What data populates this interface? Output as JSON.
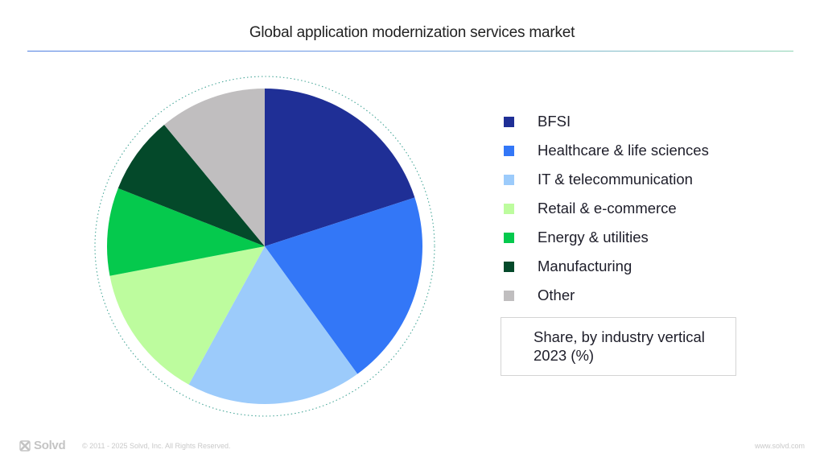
{
  "header": {
    "title": "Global application modernization services market"
  },
  "chart_data": {
    "type": "pie",
    "title": "Global application modernization services market",
    "subtitle": [
      "Share, by industry vertical",
      "2023 (%)"
    ],
    "legend_position": "right",
    "categories": [
      "BFSI",
      "Healthcare & life sciences",
      "IT & telecommunication",
      "Retail & e-commerce",
      "Energy & utilities",
      "Manufacturing",
      "Other"
    ],
    "values": [
      20,
      20,
      18,
      14,
      9,
      8,
      11
    ],
    "colors": [
      "#1f2f96",
      "#3377f7",
      "#9ccbfb",
      "#bdfc9e",
      "#05c94d",
      "#04492a",
      "#c0bebf"
    ],
    "start_angle_deg": 0,
    "direction": "clockwise"
  },
  "footer": {
    "logo_text": "Solvd",
    "copyright": "© 2011 - 2025 Solvd, Inc. All Rights Reserved.",
    "website": "www.solvd.com"
  }
}
